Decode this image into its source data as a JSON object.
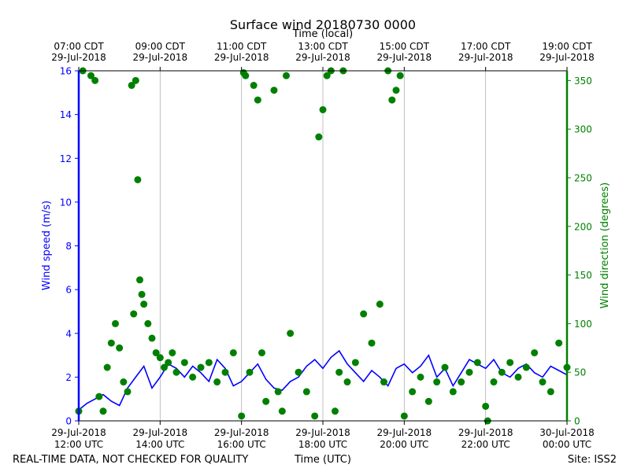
{
  "chart_data": {
    "type": "line",
    "title": "Surface wind 20180730 0000",
    "top_axis_label": "Time (local)",
    "xlabel": "Time (UTC)",
    "ylabel_left": "Wind speed (m/s)",
    "ylabel_right": "Wind direction (degrees)",
    "footer_left": "REAL-TIME DATA, NOT CHECKED FOR QUALITY",
    "footer_right": "Site: ISS2",
    "xlim_hours_utc": [
      12,
      24
    ],
    "ylim_left": [
      0,
      16
    ],
    "ylim_right": [
      0,
      360
    ],
    "colors": {
      "speed": "#0000ff",
      "direction": "#008000",
      "grid": "#b0b0b0"
    },
    "left_ticks": [
      "0",
      "2",
      "4",
      "6",
      "8",
      "10",
      "12",
      "14",
      "16"
    ],
    "right_ticks": [
      "0",
      "50",
      "100",
      "150",
      "200",
      "250",
      "300",
      "350"
    ],
    "bottom_ticks": [
      {
        "line1": "29-Jul-2018",
        "line2": "12:00 UTC"
      },
      {
        "line1": "29-Jul-2018",
        "line2": "14:00 UTC"
      },
      {
        "line1": "29-Jul-2018",
        "line2": "16:00 UTC"
      },
      {
        "line1": "29-Jul-2018",
        "line2": "18:00 UTC"
      },
      {
        "line1": "29-Jul-2018",
        "line2": "20:00 UTC"
      },
      {
        "line1": "29-Jul-2018",
        "line2": "22:00 UTC"
      },
      {
        "line1": "30-Jul-2018",
        "line2": "00:00 UTC"
      }
    ],
    "top_ticks": [
      {
        "line1": "07:00 CDT",
        "line2": "29-Jul-2018"
      },
      {
        "line1": "09:00 CDT",
        "line2": "29-Jul-2018"
      },
      {
        "line1": "11:00 CDT",
        "line2": "29-Jul-2018"
      },
      {
        "line1": "13:00 CDT",
        "line2": "29-Jul-2018"
      },
      {
        "line1": "15:00 CDT",
        "line2": "29-Jul-2018"
      },
      {
        "line1": "17:00 CDT",
        "line2": "29-Jul-2018"
      },
      {
        "line1": "19:00 CDT",
        "line2": "29-Jul-2018"
      }
    ],
    "series": [
      {
        "name": "Wind speed",
        "axis": "left",
        "style": "line",
        "x_hours": [
          12.0,
          12.2,
          12.4,
          12.6,
          12.8,
          13.0,
          13.2,
          13.4,
          13.6,
          13.8,
          14.0,
          14.2,
          14.4,
          14.6,
          14.8,
          15.0,
          15.2,
          15.4,
          15.6,
          15.8,
          16.0,
          16.2,
          16.4,
          16.6,
          16.8,
          17.0,
          17.2,
          17.4,
          17.6,
          17.8,
          18.0,
          18.2,
          18.4,
          18.6,
          18.8,
          19.0,
          19.2,
          19.4,
          19.6,
          19.8,
          20.0,
          20.2,
          20.4,
          20.6,
          20.8,
          21.0,
          21.2,
          21.4,
          21.6,
          21.8,
          22.0,
          22.2,
          22.4,
          22.6,
          22.8,
          23.0,
          23.2,
          23.4,
          23.6,
          23.8,
          24.0
        ],
        "values": [
          0.5,
          0.8,
          1.0,
          1.2,
          0.9,
          0.7,
          1.5,
          2.0,
          2.5,
          1.5,
          2.0,
          2.6,
          2.4,
          2.0,
          2.5,
          2.2,
          1.8,
          2.8,
          2.4,
          1.6,
          1.8,
          2.2,
          2.6,
          1.9,
          1.5,
          1.4,
          1.8,
          2.0,
          2.5,
          2.8,
          2.4,
          2.9,
          3.2,
          2.6,
          2.2,
          1.8,
          2.3,
          2.0,
          1.6,
          2.4,
          2.6,
          2.2,
          2.5,
          3.0,
          2.0,
          2.4,
          1.6,
          2.2,
          2.8,
          2.6,
          2.4,
          2.8,
          2.2,
          2.0,
          2.4,
          2.6,
          2.2,
          2.0,
          2.5,
          2.3,
          2.1
        ]
      },
      {
        "name": "Wind direction",
        "axis": "right",
        "style": "dots",
        "x_hours": [
          12.0,
          12.1,
          12.3,
          12.4,
          12.5,
          12.6,
          12.7,
          12.8,
          12.9,
          13.0,
          13.1,
          13.2,
          13.3,
          13.35,
          13.4,
          13.45,
          13.5,
          13.55,
          13.6,
          13.7,
          13.8,
          13.9,
          14.0,
          14.1,
          14.2,
          14.3,
          14.4,
          14.6,
          14.8,
          15.0,
          15.2,
          15.4,
          15.6,
          15.8,
          16.0,
          16.05,
          16.1,
          16.2,
          16.3,
          16.4,
          16.5,
          16.6,
          16.8,
          16.9,
          17.0,
          17.1,
          17.2,
          17.4,
          17.6,
          17.8,
          17.9,
          18.0,
          18.1,
          18.2,
          18.3,
          18.4,
          18.5,
          18.6,
          18.8,
          19.0,
          19.2,
          19.4,
          19.5,
          19.6,
          19.7,
          19.8,
          19.9,
          20.0,
          20.2,
          20.4,
          20.6,
          20.8,
          21.0,
          21.2,
          21.4,
          21.6,
          21.8,
          22.0,
          22.05,
          22.2,
          22.4,
          22.6,
          22.8,
          23.0,
          23.2,
          23.4,
          23.6,
          23.8,
          24.0
        ],
        "values": [
          10,
          360,
          355,
          350,
          25,
          10,
          55,
          80,
          100,
          75,
          40,
          30,
          345,
          110,
          350,
          248,
          145,
          130,
          120,
          100,
          85,
          70,
          65,
          55,
          60,
          70,
          50,
          60,
          45,
          55,
          60,
          40,
          50,
          70,
          5,
          358,
          355,
          50,
          345,
          330,
          70,
          20,
          340,
          30,
          10,
          355,
          90,
          50,
          30,
          5,
          292,
          320,
          355,
          360,
          10,
          50,
          360,
          40,
          60,
          110,
          80,
          120,
          40,
          360,
          330,
          340,
          355,
          5,
          30,
          45,
          20,
          40,
          55,
          30,
          40,
          50,
          60,
          15,
          0,
          40,
          50,
          60,
          45,
          55,
          70,
          40,
          30,
          80,
          55
        ]
      }
    ]
  }
}
